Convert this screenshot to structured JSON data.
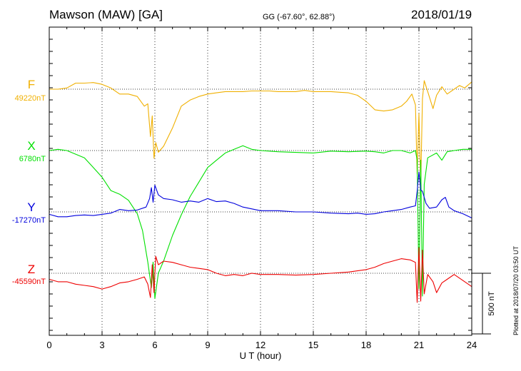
{
  "header": {
    "station": "Mawson (MAW)  [GA]",
    "coords": "GG (-67.60°,  62.88°)",
    "date": "2018/01/19"
  },
  "footer": {
    "plotted": "Plotted at 2018/07/20 03:50 UT"
  },
  "chart_data": {
    "type": "line",
    "xlabel": "U T (hour)",
    "xlim": [
      0,
      24
    ],
    "xticks": [
      0,
      3,
      6,
      9,
      12,
      15,
      18,
      21,
      24
    ],
    "grid": true,
    "scale_bar": {
      "label": "500 nT",
      "value_nT": 500
    },
    "series": [
      {
        "name": "F",
        "baseline_label": "49220nT",
        "baseline": 49220,
        "color": "#f0b000",
        "x": [
          0,
          0.5,
          1,
          1.5,
          2,
          2.5,
          3,
          3.5,
          4,
          4.5,
          5,
          5.4,
          5.6,
          5.75,
          5.85,
          5.95,
          6.05,
          6.2,
          6.5,
          7,
          7.5,
          8,
          8.5,
          9,
          9.5,
          10,
          10.5,
          11,
          11.5,
          12,
          12.5,
          13,
          13.5,
          14,
          14.5,
          15,
          15.5,
          16,
          16.5,
          17,
          17.5,
          18,
          18.5,
          19,
          19.5,
          20,
          20.3,
          20.6,
          20.8,
          20.9,
          21.0,
          21.1,
          21.2,
          21.3,
          21.5,
          21.8,
          22,
          22.3,
          22.6,
          23,
          23.3,
          23.6,
          24
        ],
        "y": [
          49220,
          49220,
          49230,
          49270,
          49270,
          49275,
          49260,
          49230,
          49180,
          49180,
          49160,
          49080,
          49100,
          48830,
          49000,
          48650,
          48780,
          48700,
          48750,
          48900,
          49080,
          49130,
          49160,
          49180,
          49190,
          49200,
          49200,
          49200,
          49205,
          49205,
          49205,
          49200,
          49200,
          49200,
          49210,
          49200,
          49200,
          49200,
          49195,
          49190,
          49170,
          49120,
          49050,
          49040,
          49050,
          49080,
          49120,
          49180,
          49090,
          48520,
          49020,
          48420,
          49140,
          49290,
          49200,
          49060,
          49170,
          49240,
          49180,
          49220,
          49250,
          49230,
          49280
        ]
      },
      {
        "name": "X",
        "baseline_label": "6780nT",
        "baseline": 6780,
        "color": "#00e000",
        "x": [
          0,
          0.5,
          1,
          1.5,
          2,
          2.5,
          3,
          3.5,
          4,
          4.5,
          5,
          5.3,
          5.6,
          5.8,
          5.9,
          6.0,
          6.2,
          6.5,
          7,
          7.5,
          8,
          8.5,
          9,
          9.5,
          10,
          10.5,
          11,
          11.5,
          12,
          13,
          14,
          15,
          16,
          17,
          18,
          18.5,
          19,
          19.5,
          20,
          20.5,
          20.8,
          20.9,
          21.0,
          21.1,
          21.2,
          21.3,
          21.5,
          22,
          22.3,
          22.6,
          23,
          23.5,
          24
        ],
        "y": [
          6780,
          6790,
          6780,
          6750,
          6720,
          6640,
          6560,
          6450,
          6420,
          6370,
          6260,
          6120,
          5860,
          5650,
          5860,
          5560,
          5770,
          5870,
          6080,
          6250,
          6400,
          6520,
          6640,
          6700,
          6760,
          6790,
          6820,
          6790,
          6780,
          6770,
          6765,
          6760,
          6775,
          6770,
          6775,
          6770,
          6760,
          6780,
          6780,
          6760,
          6780,
          6700,
          5640,
          6700,
          5580,
          6500,
          6720,
          6760,
          6700,
          6770,
          6780,
          6790,
          6790
        ]
      },
      {
        "name": "Y",
        "baseline_label": "-17270nT",
        "baseline": -17270,
        "color": "#0000dd",
        "x": [
          0,
          0.5,
          1,
          1.5,
          2,
          2.5,
          3,
          3.5,
          4,
          4.5,
          5,
          5.5,
          5.7,
          5.8,
          5.9,
          6.0,
          6.2,
          6.5,
          7,
          7.5,
          8,
          8.5,
          9,
          9.5,
          10,
          10.5,
          11,
          12,
          13,
          14,
          15,
          16,
          17,
          17.5,
          18,
          18.5,
          19,
          19.5,
          20,
          20.5,
          20.8,
          20.9,
          21.0,
          21.1,
          21.2,
          21.4,
          21.6,
          22,
          22.3,
          22.5,
          22.7,
          23,
          23.5,
          24
        ],
        "y": [
          -17290,
          -17310,
          -17310,
          -17300,
          -17295,
          -17300,
          -17290,
          -17280,
          -17250,
          -17260,
          -17255,
          -17230,
          -17160,
          -17070,
          -17190,
          -17050,
          -17130,
          -17160,
          -17170,
          -17190,
          -17180,
          -17190,
          -17160,
          -17185,
          -17180,
          -17200,
          -17230,
          -17260,
          -17260,
          -17270,
          -17270,
          -17280,
          -17285,
          -17280,
          -17290,
          -17285,
          -17270,
          -17260,
          -17250,
          -17230,
          -17220,
          -17100,
          -16940,
          -17090,
          -17100,
          -17200,
          -17240,
          -17230,
          -17170,
          -17150,
          -17230,
          -17260,
          -17285,
          -17320
        ]
      },
      {
        "name": "Z",
        "baseline_label": "-45590nT",
        "baseline": -45590,
        "color": "#ee0000",
        "x": [
          0,
          0.5,
          1,
          1.5,
          2,
          2.5,
          3,
          3.5,
          4,
          4.5,
          5,
          5.4,
          5.6,
          5.75,
          5.85,
          5.95,
          6.05,
          6.2,
          6.5,
          7,
          7.5,
          8,
          8.5,
          9,
          9.5,
          10,
          10.5,
          11,
          11.5,
          12,
          13,
          14,
          15,
          16,
          17,
          18,
          18.5,
          19,
          19.5,
          20,
          20.5,
          20.8,
          20.9,
          21.0,
          21.1,
          21.2,
          21.3,
          21.5,
          21.8,
          22,
          22.3,
          22.6,
          23,
          23.5,
          24
        ],
        "y": [
          -45640,
          -45660,
          -45660,
          -45680,
          -45690,
          -45700,
          -45720,
          -45700,
          -45670,
          -45660,
          -45640,
          -45620,
          -45680,
          -45790,
          -45520,
          -45750,
          -45450,
          -45520,
          -45490,
          -45500,
          -45520,
          -45540,
          -45550,
          -45560,
          -45590,
          -45610,
          -45600,
          -45610,
          -45590,
          -45600,
          -45600,
          -45605,
          -45600,
          -45590,
          -45580,
          -45560,
          -45540,
          -45510,
          -45490,
          -45470,
          -45480,
          -45500,
          -45830,
          -45380,
          -45820,
          -45400,
          -45760,
          -45600,
          -45660,
          -45750,
          -45670,
          -45640,
          -45600,
          -45650,
          -45700
        ]
      }
    ]
  }
}
